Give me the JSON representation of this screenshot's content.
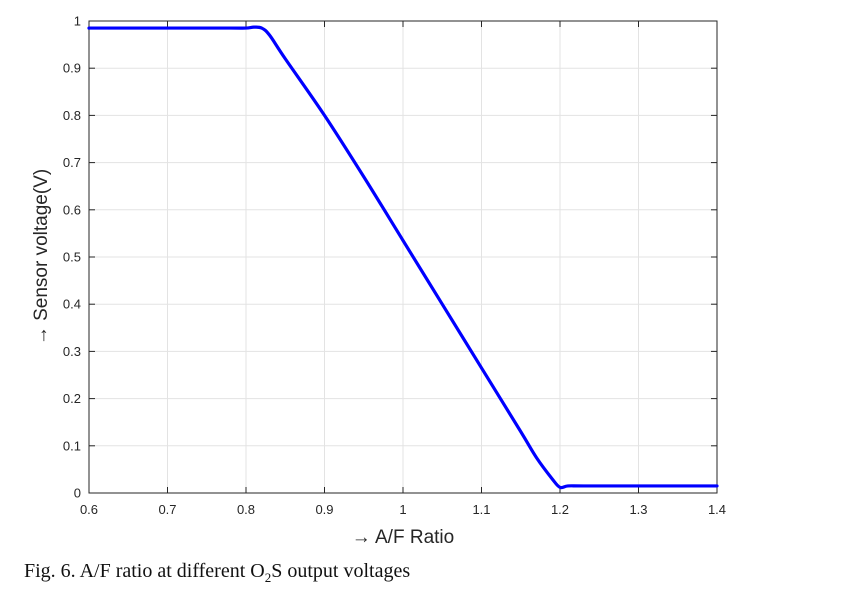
{
  "chart_data": {
    "type": "line",
    "xlabel": "→ A/F Ratio",
    "ylabel": "→ Sensor voltage(V)",
    "xlim": [
      0.6,
      1.4
    ],
    "ylim": [
      0,
      1
    ],
    "x_ticks": [
      "0.6",
      "0.7",
      "0.8",
      "0.9",
      "1",
      "1.1",
      "1.2",
      "1.3",
      "1.4"
    ],
    "y_ticks": [
      "0",
      "0.1",
      "0.2",
      "0.3",
      "0.4",
      "0.5",
      "0.6",
      "0.7",
      "0.8",
      "0.9",
      "1"
    ],
    "grid": true,
    "line_color": "#0000ff",
    "series": [
      {
        "x": [
          0.6,
          0.7,
          0.78,
          0.8,
          0.81,
          0.82,
          0.83,
          0.85,
          0.9,
          0.95,
          1.0,
          1.05,
          1.1,
          1.15,
          1.17,
          1.19,
          1.2,
          1.21,
          1.23,
          1.3,
          1.4
        ],
        "y": [
          0.985,
          0.985,
          0.985,
          0.985,
          0.987,
          0.985,
          0.97,
          0.92,
          0.8,
          0.67,
          0.535,
          0.4,
          0.265,
          0.13,
          0.075,
          0.03,
          0.012,
          0.015,
          0.015,
          0.015,
          0.015
        ]
      }
    ]
  },
  "caption": {
    "prefix": "Fig. 6.  A/F ratio at different O",
    "subscript": "2",
    "suffix": "S output voltages"
  }
}
